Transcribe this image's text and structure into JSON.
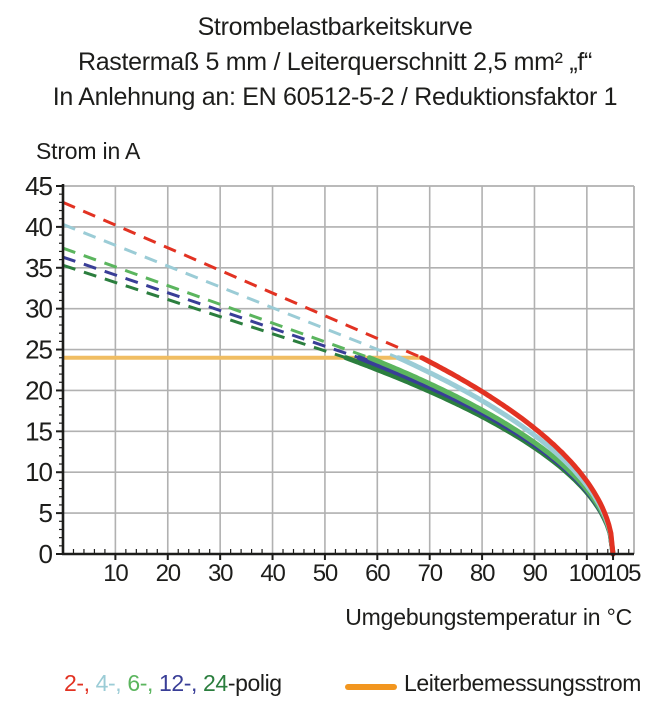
{
  "page": {
    "background": "#ffffff",
    "text_color": "#1d1d1b"
  },
  "chart_data": {
    "type": "line",
    "title": "Strombelastbarkeitskurve",
    "subtitle": "Rastermaß 5 mm / Leiterquerschnitt 2,5 mm² „f“",
    "standard_note": "In Anlehnung an: EN 60512-5-2 / Reduktionsfaktor 1",
    "ylabel": "Strom in A",
    "xlabel": "Umgebungstemperatur in °C",
    "xlim": [
      0,
      109
    ],
    "ylim": [
      0,
      45
    ],
    "x_major_ticks": [
      10,
      20,
      30,
      40,
      50,
      60,
      70,
      80,
      90,
      100,
      105
    ],
    "y_major_ticks": [
      0,
      5,
      10,
      15,
      20,
      25,
      30,
      35,
      40,
      45
    ],
    "x_minor_tick_step": 2,
    "y_minor_tick_step": 1,
    "grid": {
      "show": true,
      "color": "#b1b1b1",
      "x_step": 10,
      "y_step": 5
    },
    "axis_color": "#1d1d1b",
    "rated_current": {
      "label": "Leiterbemessungsstrom",
      "value_a": 24,
      "from_c": 0,
      "to_c": 69,
      "line_color": "#f0bd62",
      "legend_color": "#f2961f"
    },
    "series_note": "Dashed straight derating line from (0 °C, start_current_a) down to the rated-current line (24 A) at meets_rated_at_c; solid curve continues as I(T) = 24·√((105−T)/(105−meets_rated_at_c)) reaching 0 A at 105 °C.",
    "series": [
      {
        "name": "2-polig",
        "legend_text": "2-,",
        "color": "#e23222",
        "start_current_a": 43.0,
        "meets_rated_at_c": 68.5,
        "zero_at_c": 105
      },
      {
        "name": "4-polig",
        "legend_text": "4-,",
        "color": "#9bccd6",
        "start_current_a": 40.3,
        "meets_rated_at_c": 64.0,
        "zero_at_c": 105
      },
      {
        "name": "6-polig",
        "legend_text": "6-,",
        "color": "#5bb55e",
        "start_current_a": 37.4,
        "meets_rated_at_c": 58.5,
        "zero_at_c": 105
      },
      {
        "name": "12-polig",
        "legend_text": "12-,",
        "color": "#393e97",
        "start_current_a": 36.3,
        "meets_rated_at_c": 56.5,
        "zero_at_c": 105
      },
      {
        "name": "24-polig",
        "legend_text": "24",
        "color": "#2b7e3e",
        "start_current_a": 35.3,
        "meets_rated_at_c": 54.0,
        "zero_at_c": 105
      }
    ],
    "legend_suffix": "-polig"
  }
}
